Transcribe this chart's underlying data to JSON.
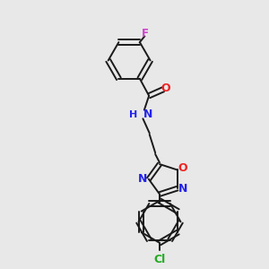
{
  "background_color": "#e8e8e8",
  "bond_color": "#1a1a1a",
  "F_color": "#cc44cc",
  "O_color": "#ee2222",
  "N_color": "#2222ee",
  "Cl_color": "#22aa22",
  "figsize": [
    3.0,
    3.0
  ],
  "dpi": 100,
  "xlim": [
    0,
    10
  ],
  "ylim": [
    0,
    10
  ]
}
